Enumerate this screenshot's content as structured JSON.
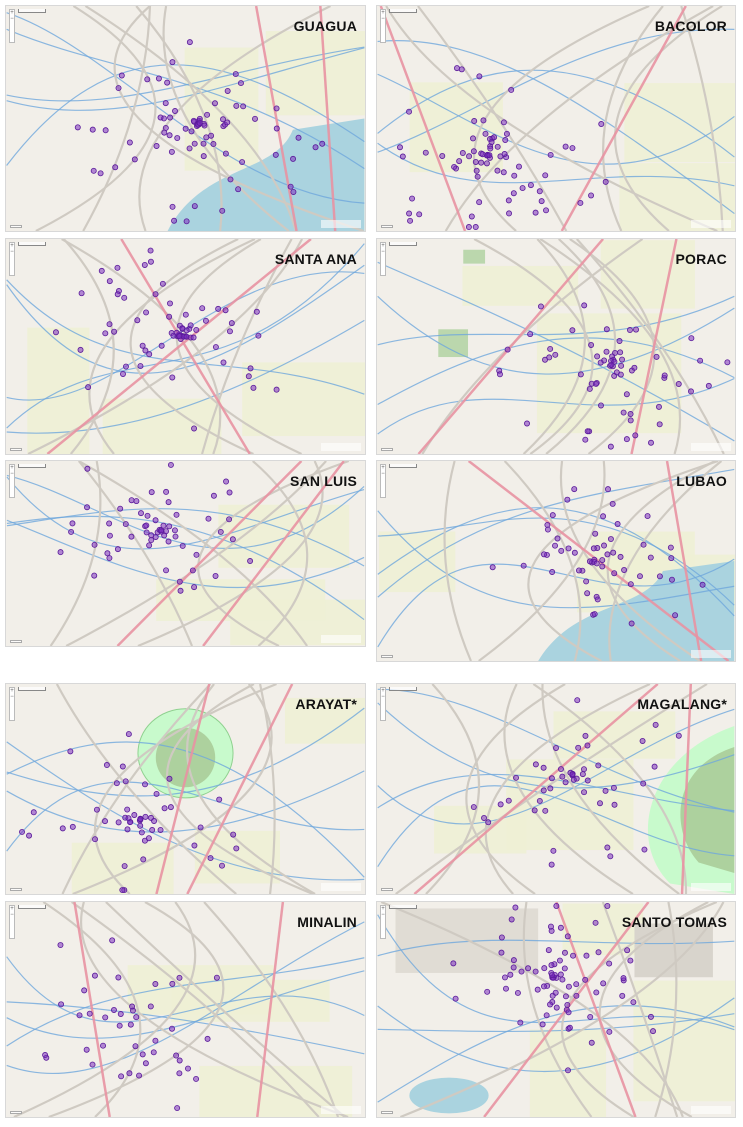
{
  "panels": [
    {
      "id": "guagua",
      "title": "GUAGUA",
      "style": "water-heavy"
    },
    {
      "id": "bacolor",
      "title": "BACOLOR",
      "style": "river"
    },
    {
      "id": "santa-ana",
      "title": "SANTA ANA",
      "style": "rural"
    },
    {
      "id": "porac",
      "title": "PORAC",
      "style": "parks"
    },
    {
      "id": "san-luis",
      "title": "SAN LUIS",
      "style": "rural"
    },
    {
      "id": "lubao",
      "title": "LUBAO",
      "style": "water-heavy"
    },
    {
      "id": "arayat",
      "title": "ARAYAT*",
      "style": "mountain"
    },
    {
      "id": "magalang",
      "title": "MAGALANG*",
      "style": "mountain-right"
    },
    {
      "id": "minalin",
      "title": "MINALIN",
      "style": "river"
    },
    {
      "id": "santo-tomas",
      "title": "SANTO TOMAS",
      "style": "urban"
    }
  ],
  "colors": {
    "marker_fill": "#7b2fbf",
    "marker_stroke": "#5a1a9a",
    "water": "#aad3df",
    "land": "#f2efe9",
    "farmland": "#eef0d5",
    "park": "#c8facc",
    "forest": "#add19e",
    "road_major": "#e892a2",
    "road_minor": "#ffffff",
    "river": "#6fa8dc"
  }
}
